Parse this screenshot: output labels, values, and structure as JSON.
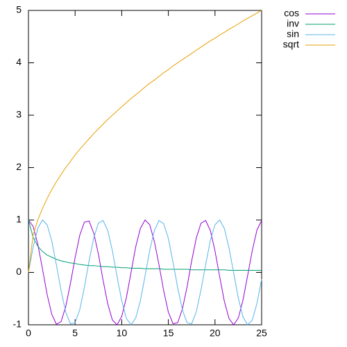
{
  "chart_data": {
    "type": "line",
    "x": [
      0,
      0.5,
      1,
      1.5,
      2,
      2.5,
      3,
      3.5,
      4,
      4.5,
      5,
      5.5,
      6,
      6.5,
      7,
      7.5,
      8,
      8.5,
      9,
      9.5,
      10,
      10.5,
      11,
      11.5,
      12,
      12.5,
      13,
      13.5,
      14,
      14.5,
      15,
      15.5,
      16,
      16.5,
      17,
      17.5,
      18,
      18.5,
      19,
      19.5,
      20,
      20.5,
      21,
      21.5,
      22,
      22.5,
      23,
      23.5,
      24,
      24.5,
      25
    ],
    "series": [
      {
        "name": "cos",
        "color": "#9400d3",
        "values": [
          1,
          0.88,
          0.54,
          0.07,
          -0.42,
          -0.8,
          -0.99,
          -0.94,
          -0.65,
          -0.21,
          0.28,
          0.71,
          0.96,
          0.98,
          0.75,
          0.35,
          -0.15,
          -0.6,
          -0.91,
          -1,
          -0.84,
          -0.48,
          0,
          0.49,
          0.84,
          1,
          0.91,
          0.59,
          0.14,
          -0.35,
          -0.76,
          -0.98,
          -0.96,
          -0.7,
          -0.28,
          0.22,
          0.66,
          0.94,
          0.99,
          0.8,
          0.41,
          -0.08,
          -0.55,
          -0.88,
          -1,
          -0.87,
          -0.53,
          -0.06,
          0.42,
          0.81,
          0.99
        ]
      },
      {
        "name": "inv",
        "color": "#009e73",
        "values": [
          1,
          0.67,
          0.5,
          0.4,
          0.33,
          0.29,
          0.25,
          0.22,
          0.2,
          0.18,
          0.17,
          0.15,
          0.14,
          0.13,
          0.13,
          0.12,
          0.11,
          0.11,
          0.1,
          0.1,
          0.09,
          0.09,
          0.08,
          0.08,
          0.08,
          0.07,
          0.07,
          0.07,
          0.07,
          0.06,
          0.06,
          0.06,
          0.06,
          0.06,
          0.06,
          0.05,
          0.05,
          0.05,
          0.05,
          0.05,
          0.05,
          0.05,
          0.05,
          0.04,
          0.04,
          0.04,
          0.04,
          0.04,
          0.04,
          0.04,
          0.04
        ]
      },
      {
        "name": "sin",
        "color": "#56b4e9",
        "values": [
          0,
          0.48,
          0.84,
          1,
          0.91,
          0.6,
          0.14,
          -0.35,
          -0.76,
          -0.98,
          -0.96,
          -0.71,
          -0.28,
          0.22,
          0.66,
          0.94,
          0.99,
          0.8,
          0.41,
          -0.08,
          -0.54,
          -0.88,
          -1,
          -0.87,
          -0.54,
          -0.07,
          0.42,
          0.8,
          0.99,
          0.93,
          0.65,
          0.19,
          -0.29,
          -0.71,
          -0.96,
          -0.98,
          -0.75,
          -0.33,
          0.15,
          0.61,
          0.91,
          1,
          0.84,
          0.47,
          -0.01,
          -0.49,
          -0.85,
          -1,
          -0.91,
          -0.59,
          -0.13
        ]
      },
      {
        "name": "sqrt",
        "color": "#e69f00",
        "values": [
          0,
          0.71,
          1,
          1.22,
          1.41,
          1.58,
          1.73,
          1.87,
          2,
          2.12,
          2.24,
          2.35,
          2.45,
          2.55,
          2.65,
          2.74,
          2.83,
          2.92,
          3,
          3.08,
          3.16,
          3.24,
          3.32,
          3.39,
          3.46,
          3.54,
          3.61,
          3.67,
          3.74,
          3.81,
          3.87,
          3.94,
          4,
          4.06,
          4.12,
          4.18,
          4.24,
          4.3,
          4.36,
          4.42,
          4.47,
          4.53,
          4.58,
          4.64,
          4.69,
          4.74,
          4.8,
          4.85,
          4.9,
          4.95,
          5
        ]
      }
    ],
    "xlim": [
      0,
      25
    ],
    "xticks": [
      0,
      5,
      10,
      15,
      20,
      25
    ],
    "ylim": [
      -1,
      5
    ],
    "yticks": [
      -1,
      0,
      1,
      2,
      3,
      4,
      5
    ],
    "legend": "top-right"
  }
}
